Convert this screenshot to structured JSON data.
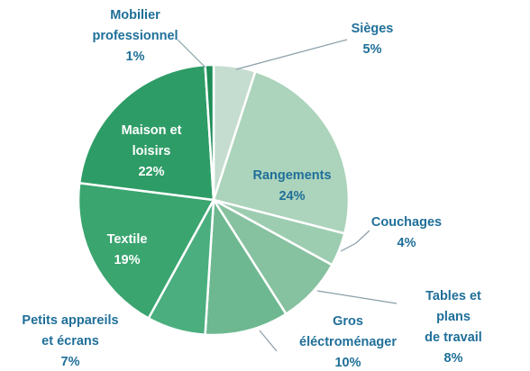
{
  "chart_data": {
    "type": "pie",
    "categories": [
      "Sièges",
      "Rangements",
      "Couchages",
      "Tables et plans\nde travail",
      "Gros\néléctroménager",
      "Petits appareils\net écrans",
      "Textile",
      "Maison et\nloisirs",
      "Mobilier\nprofessionnel"
    ],
    "values": [
      5,
      24,
      4,
      8,
      10,
      7,
      19,
      22,
      1
    ],
    "value_labels": [
      "5%",
      "24%",
      "4%",
      "8%",
      "10%",
      "7%",
      "19%",
      "22%",
      "1%"
    ],
    "colors": [
      "#c5ddd0",
      "#acd3bb",
      "#9dcdb0",
      "#86c1a0",
      "#6db890",
      "#4aae7f",
      "#3aa56f",
      "#2e9c66",
      "#1e8d58"
    ]
  }
}
